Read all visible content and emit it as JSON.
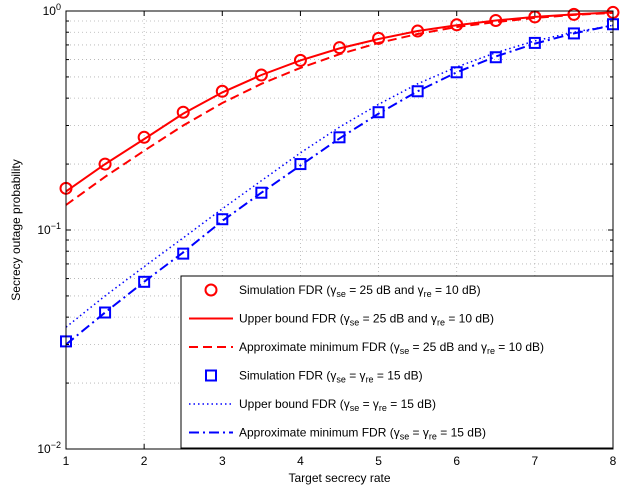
{
  "chart_data": {
    "type": "line",
    "title": "",
    "xlabel": "Target secrecy rate",
    "ylabel": "Secrecy outage probability",
    "xlim": [
      1,
      8
    ],
    "ylim": [
      0.01,
      1
    ],
    "yscale": "log",
    "grid": true,
    "legend_position": "bottom-right",
    "x_ticks": [
      {
        "value": 1,
        "label": "1"
      },
      {
        "value": 2,
        "label": "2"
      },
      {
        "value": 3,
        "label": "3"
      },
      {
        "value": 4,
        "label": "4"
      },
      {
        "value": 5,
        "label": "5"
      },
      {
        "value": 6,
        "label": "6"
      },
      {
        "value": 7,
        "label": "7"
      },
      {
        "value": 8,
        "label": "8"
      }
    ],
    "y_ticks": [
      {
        "value": 0.01,
        "base": "10",
        "exp": "−2"
      },
      {
        "value": 0.1,
        "base": "10",
        "exp": "−1"
      },
      {
        "value": 1,
        "base": "10",
        "exp": "0"
      }
    ],
    "series": [
      {
        "name": "Simulation FDR (γse = 25 dB and γre = 10 dB)",
        "label_parts": [
          {
            "t": "Simulation FDR (γ"
          },
          {
            "t": "se",
            "sub": true
          },
          {
            "t": " = 25 dB and γ"
          },
          {
            "t": "re",
            "sub": true
          },
          {
            "t": " = 10 dB)"
          }
        ],
        "style": "marker-circle",
        "color": "#ff0000",
        "x": [
          1,
          1.5,
          2,
          2.5,
          3,
          3.5,
          4,
          4.5,
          5,
          5.5,
          6,
          6.5,
          7,
          7.5,
          8
        ],
        "y": [
          0.155,
          0.2,
          0.265,
          0.345,
          0.43,
          0.51,
          0.595,
          0.68,
          0.75,
          0.81,
          0.865,
          0.905,
          0.94,
          0.965,
          0.985
        ]
      },
      {
        "name": "Upper bound FDR (γse = 25 dB and γre = 10 dB)",
        "label_parts": [
          {
            "t": "Upper bound FDR (γ"
          },
          {
            "t": "se",
            "sub": true
          },
          {
            "t": " = 25 dB and γ"
          },
          {
            "t": "re",
            "sub": true
          },
          {
            "t": " = 10 dB)"
          }
        ],
        "style": "solid",
        "color": "#ff0000",
        "x": [
          1,
          1.5,
          2,
          2.5,
          3,
          3.5,
          4,
          4.5,
          5,
          5.5,
          6,
          6.5,
          7,
          7.5,
          8
        ],
        "y": [
          0.15,
          0.2,
          0.26,
          0.34,
          0.425,
          0.51,
          0.595,
          0.675,
          0.745,
          0.81,
          0.86,
          0.905,
          0.94,
          0.965,
          0.985
        ]
      },
      {
        "name": "Approximate minimum FDR (γse = 25 dB and γre = 10 dB)",
        "label_parts": [
          {
            "t": "Approximate minimum FDR (γ"
          },
          {
            "t": "se",
            "sub": true
          },
          {
            "t": " = 25 dB and γ"
          },
          {
            "t": "re",
            "sub": true
          },
          {
            "t": " = 10 dB)"
          }
        ],
        "style": "dashed",
        "color": "#ff0000",
        "x": [
          1,
          1.5,
          2,
          2.5,
          3,
          3.5,
          4,
          4.5,
          5,
          5.5,
          6,
          6.5,
          7,
          7.5,
          8
        ],
        "y": [
          0.13,
          0.175,
          0.23,
          0.3,
          0.38,
          0.465,
          0.55,
          0.635,
          0.715,
          0.785,
          0.845,
          0.89,
          0.93,
          0.96,
          0.98
        ]
      },
      {
        "name": "Simulation FDR (γse = γre = 15 dB)",
        "label_parts": [
          {
            "t": "Simulation FDR (γ"
          },
          {
            "t": "se",
            "sub": true
          },
          {
            "t": " =  γ"
          },
          {
            "t": "re",
            "sub": true
          },
          {
            "t": " = 15 dB)"
          }
        ],
        "style": "marker-square",
        "color": "#0000ff",
        "x": [
          1,
          1.5,
          2,
          2.5,
          3,
          3.5,
          4,
          4.5,
          5,
          5.5,
          6,
          6.5,
          7,
          7.5,
          8
        ],
        "y": [
          0.031,
          0.042,
          0.058,
          0.078,
          0.112,
          0.148,
          0.2,
          0.265,
          0.345,
          0.43,
          0.525,
          0.615,
          0.715,
          0.79,
          0.87
        ]
      },
      {
        "name": "Upper bound FDR (γse = γre = 15 dB)",
        "label_parts": [
          {
            "t": "Upper bound FDR (γ"
          },
          {
            "t": "se",
            "sub": true
          },
          {
            "t": " =  γ"
          },
          {
            "t": "re",
            "sub": true
          },
          {
            "t": " = 15 dB)"
          }
        ],
        "style": "dotted",
        "color": "#0000ff",
        "x": [
          1,
          1.5,
          2,
          2.5,
          3,
          3.5,
          4,
          4.5,
          5,
          5.5,
          6,
          6.5,
          7,
          7.5,
          8
        ],
        "y": [
          0.036,
          0.05,
          0.068,
          0.092,
          0.125,
          0.168,
          0.225,
          0.295,
          0.375,
          0.465,
          0.555,
          0.645,
          0.73,
          0.8,
          0.86
        ]
      },
      {
        "name": "Approximate minimum FDR (γse = γre = 15 dB)",
        "label_parts": [
          {
            "t": "Approximate minimum FDR (γ"
          },
          {
            "t": "se",
            "sub": true
          },
          {
            "t": " =  γ"
          },
          {
            "t": "re",
            "sub": true
          },
          {
            "t": " = 15 dB)"
          }
        ],
        "style": "dashdot",
        "color": "#0000ff",
        "x": [
          1,
          1.5,
          2,
          2.5,
          3,
          3.5,
          4,
          4.5,
          5,
          5.5,
          6,
          6.5,
          7,
          7.5,
          8
        ],
        "y": [
          0.03,
          0.042,
          0.058,
          0.079,
          0.11,
          0.148,
          0.197,
          0.262,
          0.34,
          0.43,
          0.525,
          0.62,
          0.71,
          0.79,
          0.86
        ]
      }
    ]
  }
}
